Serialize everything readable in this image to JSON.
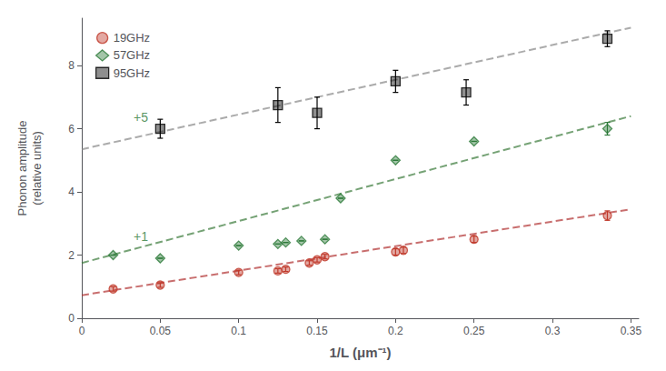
{
  "chart_data": {
    "type": "scatter",
    "xlabel": "1/L (μm⁻¹)",
    "ylabel": "Phonon amplitude\n(relative units)",
    "xlim": [
      0.0,
      0.355
    ],
    "ylim": [
      0.0,
      9.5
    ],
    "xticks": [
      0,
      0.05,
      0.1,
      0.15,
      0.2,
      0.25,
      0.3,
      0.35
    ],
    "yticks": [
      0,
      2,
      4,
      6,
      8
    ],
    "grid": false,
    "legend": "upper left",
    "series": [
      {
        "type": "line",
        "line_style": "dashed",
        "color": "#b03030",
        "x": [
          0.0,
          0.35
        ],
        "values": [
          0.73,
          3.45
        ]
      },
      {
        "type": "line",
        "line_style": "dashed",
        "color": "#3a7a3a",
        "x": [
          0.0,
          0.35
        ],
        "values": [
          1.75,
          6.4
        ]
      },
      {
        "type": "line",
        "line_style": "dashed",
        "color": "#888888",
        "x": [
          0.0,
          0.35
        ],
        "values": [
          5.35,
          9.2
        ]
      },
      {
        "name": "19GHz",
        "type": "scatter",
        "marker": "circle",
        "color": "#c0392b",
        "x": [
          0.02,
          0.05,
          0.1,
          0.125,
          0.13,
          0.145,
          0.15,
          0.155,
          0.2,
          0.205,
          0.25,
          0.335
        ],
        "values": [
          0.93,
          1.05,
          1.45,
          1.5,
          1.55,
          1.75,
          1.85,
          1.95,
          2.1,
          2.15,
          2.5,
          3.25
        ],
        "yerr": [
          0.07,
          0.07,
          0.07,
          0.07,
          0.07,
          0.07,
          0.07,
          0.07,
          0.1,
          0.1,
          0.1,
          0.15
        ]
      },
      {
        "name": "57GHz",
        "type": "scatter",
        "marker": "diamond",
        "color": "#2d7a3a",
        "x": [
          0.02,
          0.05,
          0.1,
          0.125,
          0.13,
          0.14,
          0.155,
          0.165,
          0.2,
          0.25,
          0.335
        ],
        "values": [
          2.0,
          1.9,
          2.3,
          2.35,
          2.4,
          2.45,
          2.5,
          3.8,
          5.0,
          5.6,
          6.0
        ],
        "yerr": [
          0.0,
          0.0,
          0.0,
          0.0,
          0.0,
          0.0,
          0.0,
          0.0,
          0.0,
          0.0,
          0.2
        ]
      },
      {
        "name": "95GHz",
        "type": "scatter",
        "marker": "square",
        "color": "#000000",
        "x": [
          0.05,
          0.125,
          0.15,
          0.2,
          0.245,
          0.335
        ],
        "values": [
          6.0,
          6.75,
          6.5,
          7.5,
          7.15,
          8.85
        ],
        "yerr": [
          0.3,
          0.55,
          0.5,
          0.35,
          0.4,
          0.25
        ]
      }
    ],
    "annotations": [
      {
        "text": "+5",
        "x": 0.033,
        "y": 6.35,
        "color": "#2d7a3a"
      },
      {
        "text": "+1",
        "x": 0.033,
        "y": 2.6,
        "color": "#2d7a3a"
      }
    ]
  }
}
